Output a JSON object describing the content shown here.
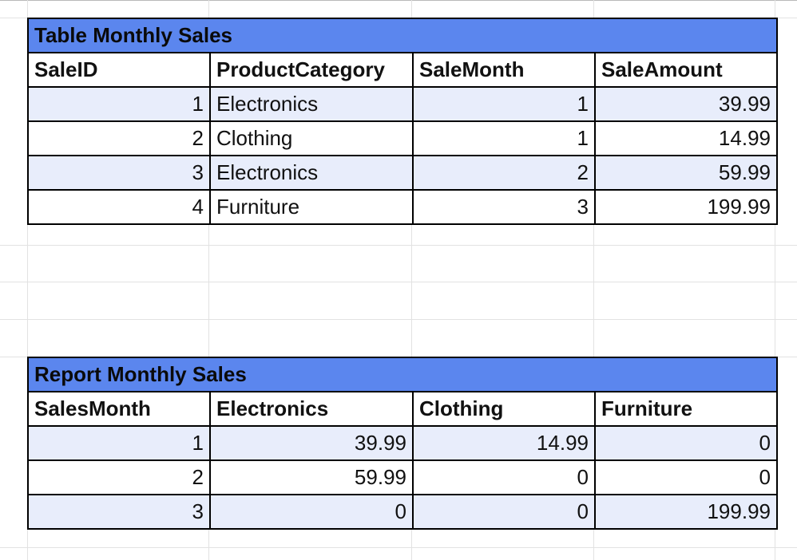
{
  "sales_table": {
    "title": "Table Monthly Sales",
    "headers": [
      "SaleID",
      "ProductCategory",
      "SaleMonth",
      "SaleAmount"
    ],
    "rows": [
      [
        "1",
        "Electronics",
        "1",
        "39.99"
      ],
      [
        "2",
        "Clothing",
        "1",
        "14.99"
      ],
      [
        "3",
        "Electronics",
        "2",
        "59.99"
      ],
      [
        "4",
        "Furniture",
        "3",
        "199.99"
      ]
    ]
  },
  "report_table": {
    "title": "Report Monthly Sales",
    "headers": [
      "SalesMonth",
      "Electronics",
      "Clothing",
      "Furniture"
    ],
    "rows": [
      [
        "1",
        "39.99",
        "14.99",
        "0"
      ],
      [
        "2",
        "59.99",
        "0",
        "0"
      ],
      [
        "3",
        "0",
        "0",
        "199.99"
      ]
    ]
  },
  "colors": {
    "title_fill": "#5b86ee",
    "band_fill": "#e8edfb",
    "grid_line": "#e2e2e2"
  }
}
